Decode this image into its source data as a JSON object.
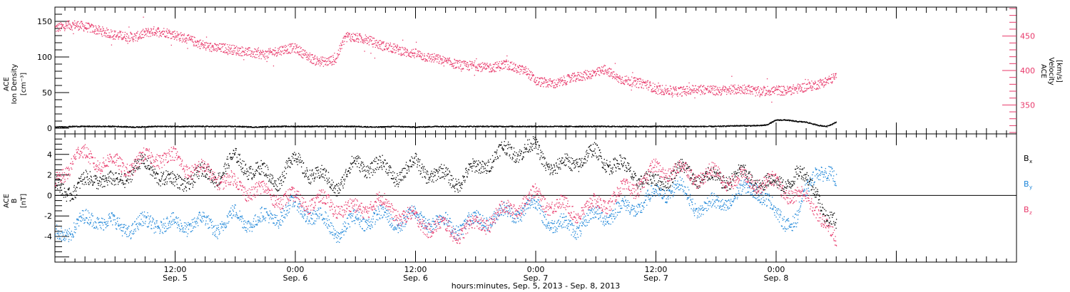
{
  "figure": {
    "xaxis_title": "hours:minutes, Sep.  5, 2013 - Sep.  8, 2013"
  },
  "colors": {
    "black": "#000000",
    "blue": "#1a84d8",
    "pink": "#e8386a"
  },
  "chart_data": [
    {
      "type": "scatter",
      "title": "",
      "left_axis": {
        "label_lines": [
          "ACE",
          "Ion Density",
          "[cm⁻³]"
        ],
        "ylim": [
          -8,
          170
        ],
        "ticks": [
          0,
          50,
          100,
          150
        ]
      },
      "right_axis": {
        "label_lines": [
          "ACE",
          "Velocity",
          "[km/s]"
        ],
        "ylim": [
          308,
          492
        ],
        "ticks": [
          350,
          400,
          450
        ],
        "color": "#e8386a"
      },
      "xlim_hours": [
        0,
        96
      ],
      "x_ticks": [
        {
          "hour": 12,
          "line1": "12:00",
          "line2": "Sep. 5"
        },
        {
          "hour": 24,
          "line1": "0:00",
          "line2": "Sep. 6"
        },
        {
          "hour": 36,
          "line1": "12:00",
          "line2": "Sep. 6"
        },
        {
          "hour": 48,
          "line1": "0:00",
          "line2": "Sep. 7"
        },
        {
          "hour": 60,
          "line1": "12:00",
          "line2": "Sep. 7"
        },
        {
          "hour": 72,
          "line1": "0:00",
          "line2": "Sep. 8"
        }
      ],
      "series": [
        {
          "axis": "right",
          "color": "#e8386a",
          "x": [
            0,
            1,
            2,
            3,
            4,
            5,
            6,
            7,
            8,
            9,
            10,
            11,
            12,
            13,
            14,
            15,
            16,
            17,
            18,
            19,
            20,
            21,
            22,
            23,
            24,
            25,
            26,
            27,
            28,
            29,
            30,
            31,
            32,
            33,
            34,
            35,
            36,
            37,
            38,
            39,
            40,
            41,
            42,
            43,
            44,
            45,
            46,
            47,
            48,
            49,
            50,
            51,
            52,
            53,
            54,
            55,
            56,
            57,
            58,
            59,
            60,
            61,
            62,
            63,
            64,
            65,
            66,
            67,
            68,
            69,
            70,
            71,
            72,
            73,
            74,
            75,
            76,
            77,
            78
          ],
          "y": [
            462,
            465,
            467,
            464,
            460,
            456,
            452,
            450,
            449,
            455,
            458,
            456,
            452,
            447,
            442,
            436,
            433,
            433,
            430,
            428,
            425,
            424,
            428,
            432,
            433,
            423,
            415,
            413,
            417,
            451,
            448,
            446,
            440,
            435,
            432,
            427,
            425,
            420,
            418,
            413,
            410,
            407,
            408,
            404,
            406,
            410,
            403,
            400,
            385,
            383,
            381,
            387,
            391,
            394,
            397,
            402,
            390,
            386,
            383,
            381,
            373,
            372,
            370,
            371,
            374,
            373,
            371,
            372,
            373,
            374,
            370,
            371,
            372,
            371,
            374,
            377,
            380,
            385,
            392
          ]
        },
        {
          "axis": "left",
          "color": "#000000",
          "x": [
            0,
            2,
            4,
            6,
            8,
            10,
            12,
            14,
            16,
            18,
            20,
            22,
            24,
            26,
            28,
            30,
            32,
            34,
            36,
            38,
            40,
            42,
            44,
            46,
            48,
            50,
            52,
            54,
            56,
            58,
            60,
            62,
            64,
            66,
            68,
            70,
            71,
            72,
            73,
            74,
            75,
            76,
            77,
            78
          ],
          "y": [
            2,
            3,
            3,
            3,
            2,
            3,
            3,
            3,
            3,
            3,
            2,
            3,
            3,
            3,
            3,
            3,
            2,
            3,
            2,
            3,
            3,
            3,
            3,
            3,
            3,
            3,
            3,
            3,
            3,
            3,
            3,
            3,
            3,
            3,
            4,
            4,
            5,
            12,
            12,
            10,
            9,
            5,
            3,
            9
          ]
        }
      ]
    },
    {
      "type": "scatter",
      "title": "",
      "left_axis": {
        "label_lines": [
          "ACE",
          "B",
          "[nT]"
        ],
        "ylim": [
          -6.5,
          6
        ],
        "ticks": [
          -4,
          -2,
          0,
          2,
          4
        ]
      },
      "xlim_hours": [
        0,
        96
      ],
      "x_ticks": [
        {
          "hour": 12,
          "line1": "12:00",
          "line2": "Sep. 5"
        },
        {
          "hour": 24,
          "line1": "0:00",
          "line2": "Sep. 6"
        },
        {
          "hour": 36,
          "line1": "12:00",
          "line2": "Sep. 6"
        },
        {
          "hour": 48,
          "line1": "0:00",
          "line2": "Sep. 7"
        },
        {
          "hour": 60,
          "line1": "12:00",
          "line2": "Sep. 7"
        },
        {
          "hour": 72,
          "line1": "0:00",
          "line2": "Sep. 8"
        }
      ],
      "legend": [
        {
          "name": "B",
          "sub": "x",
          "color": "#000000"
        },
        {
          "name": "B",
          "sub": "y",
          "color": "#1a84d8"
        },
        {
          "name": "B",
          "sub": "z",
          "color": "#e8386a"
        }
      ],
      "series": [
        {
          "name": "Bx",
          "color": "#000000",
          "x": [
            0,
            2,
            4,
            6,
            8,
            10,
            12,
            14,
            16,
            18,
            20,
            22,
            24,
            26,
            28,
            30,
            32,
            34,
            36,
            38,
            40,
            42,
            44,
            46,
            48,
            50,
            52,
            54,
            56,
            58,
            60,
            62,
            64,
            66,
            68,
            70,
            72,
            74,
            76,
            77,
            78
          ],
          "y": [
            1,
            0.5,
            2,
            1,
            3,
            2.5,
            1,
            2,
            2,
            3.5,
            2.5,
            1.5,
            3.5,
            2,
            1,
            3,
            3,
            2,
            3,
            2,
            1.5,
            2.5,
            4,
            4.5,
            4.5,
            2.5,
            3.5,
            4,
            3,
            2,
            1,
            2.5,
            2,
            1.5,
            2,
            1.5,
            1,
            2,
            1,
            -2.5,
            -3
          ]
        },
        {
          "name": "By",
          "color": "#1a84d8",
          "x": [
            0,
            2,
            4,
            6,
            8,
            10,
            12,
            14,
            16,
            18,
            20,
            22,
            24,
            26,
            28,
            30,
            32,
            34,
            36,
            38,
            40,
            42,
            44,
            46,
            48,
            50,
            52,
            54,
            56,
            58,
            60,
            62,
            64,
            66,
            68,
            70,
            72,
            74,
            76,
            77,
            78
          ],
          "y": [
            -4,
            -3,
            -2,
            -3,
            -3,
            -2.5,
            -3,
            -2.5,
            -3,
            -2,
            -2.5,
            -2,
            -1,
            -2,
            -3.5,
            -2.5,
            -2,
            -2.5,
            -2,
            -2.5,
            -3,
            -2.5,
            -2,
            -1.5,
            -1,
            -3,
            -3,
            -2,
            -1.5,
            -1,
            0,
            1,
            -1,
            -1,
            0,
            1,
            -2,
            -2.5,
            3,
            2,
            1
          ]
        },
        {
          "name": "Bz",
          "color": "#e8386a",
          "x": [
            0,
            2,
            4,
            6,
            8,
            10,
            12,
            14,
            16,
            18,
            20,
            22,
            24,
            26,
            28,
            30,
            32,
            34,
            36,
            38,
            40,
            42,
            44,
            46,
            48,
            50,
            52,
            54,
            56,
            58,
            60,
            62,
            64,
            66,
            68,
            70,
            72,
            74,
            76,
            77,
            78
          ],
          "y": [
            1,
            4,
            3.5,
            3,
            3,
            4,
            3.5,
            2.5,
            2,
            1,
            0.5,
            0,
            -0.5,
            -0.5,
            -1,
            -1.5,
            -0.5,
            -1.5,
            -2.5,
            -3,
            -3.5,
            -3,
            -2,
            -1,
            0,
            -1,
            -1.5,
            -1,
            0,
            1,
            2.5,
            2.5,
            2,
            2,
            1.5,
            1.5,
            1,
            0,
            -1,
            -3,
            -5
          ]
        }
      ]
    }
  ]
}
